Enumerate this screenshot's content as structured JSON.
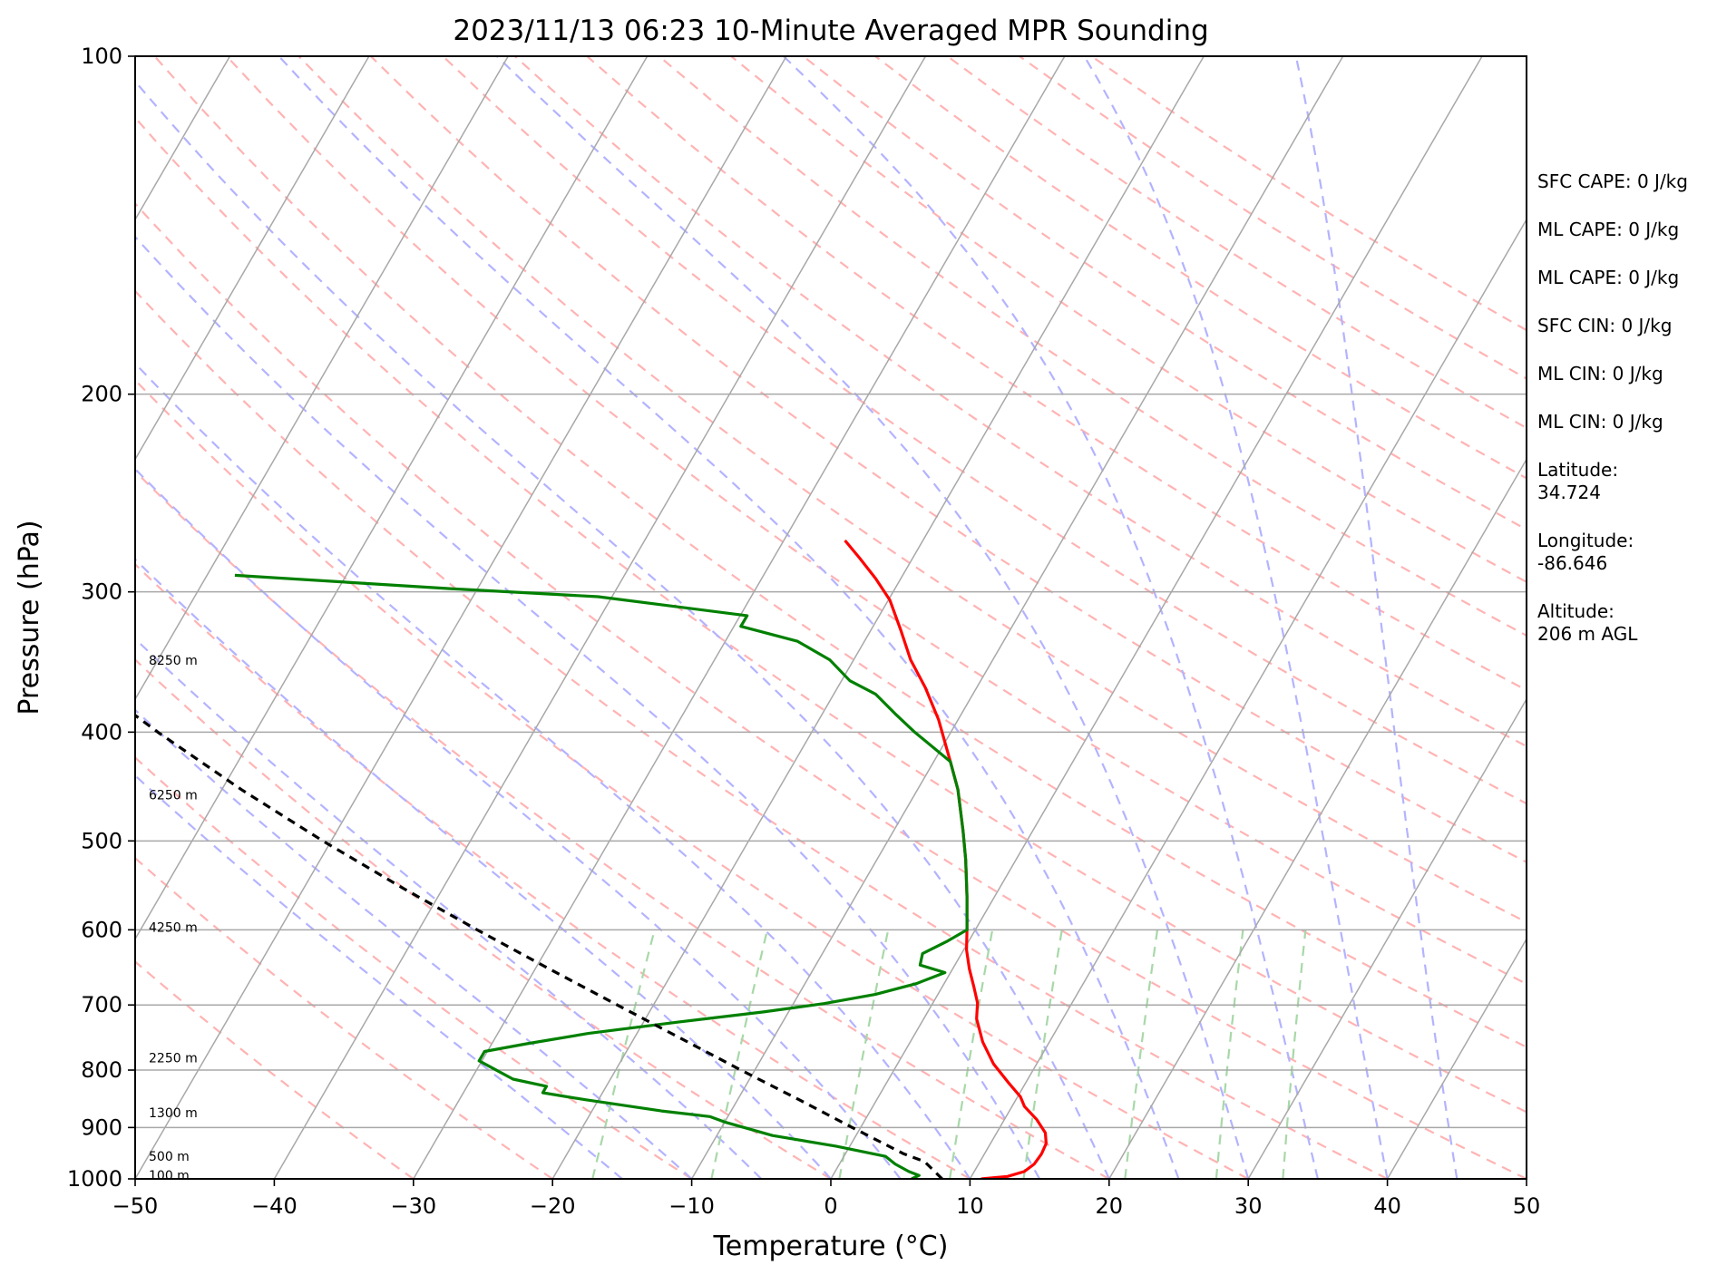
{
  "chart_data": {
    "type": "line",
    "title": "2023/11/13 06:23 10-Minute Averaged MPR Sounding",
    "xlabel": "Temperature (°C)",
    "ylabel": "Pressure (hPa)",
    "xlim": [
      -50,
      50
    ],
    "ylim": [
      1000,
      100
    ],
    "y_scale": "log",
    "skew": true,
    "grid": true,
    "x_ticks": [
      -50,
      -40,
      -30,
      -20,
      -10,
      0,
      10,
      20,
      30,
      40,
      50
    ],
    "x_tick_labels": [
      "−50",
      "−40",
      "−30",
      "−20",
      "−10",
      "0",
      "10",
      "20",
      "30",
      "40",
      "50"
    ],
    "y_ticks": [
      100,
      200,
      300,
      400,
      500,
      600,
      700,
      800,
      900,
      1000
    ],
    "y_tick_labels": [
      "100",
      "200",
      "300",
      "400",
      "500",
      "600",
      "700",
      "800",
      "900",
      "1000"
    ],
    "height_labels": [
      {
        "text": "8250 m",
        "p": 345
      },
      {
        "text": "6250 m",
        "p": 455
      },
      {
        "text": "4250 m",
        "p": 597
      },
      {
        "text": "2250 m",
        "p": 780
      },
      {
        "text": "1300 m",
        "p": 873
      },
      {
        "text": "500 m",
        "p": 955
      },
      {
        "text": "100 m",
        "p": 993
      }
    ],
    "series": [
      {
        "key": "temperature",
        "color": "#ff0000",
        "dash": "",
        "points": [
          {
            "p": 1000,
            "t": 10.8
          },
          {
            "p": 995,
            "t": 12.6
          },
          {
            "p": 985,
            "t": 13.6
          },
          {
            "p": 970,
            "t": 14.0
          },
          {
            "p": 950,
            "t": 14.1
          },
          {
            "p": 930,
            "t": 14.0
          },
          {
            "p": 910,
            "t": 13.5
          },
          {
            "p": 885,
            "t": 12.3
          },
          {
            "p": 862,
            "t": 10.9
          },
          {
            "p": 845,
            "t": 10.2
          },
          {
            "p": 820,
            "t": 8.7
          },
          {
            "p": 790,
            "t": 6.9
          },
          {
            "p": 755,
            "t": 5.2
          },
          {
            "p": 720,
            "t": 3.8
          },
          {
            "p": 697,
            "t": 3.2
          },
          {
            "p": 675,
            "t": 2.3
          },
          {
            "p": 650,
            "t": 1.2
          },
          {
            "p": 625,
            "t": 0.2
          },
          {
            "p": 600,
            "t": -0.6
          },
          {
            "p": 560,
            "t": -2.0
          },
          {
            "p": 520,
            "t": -3.6
          },
          {
            "p": 490,
            "t": -5.0
          },
          {
            "p": 450,
            "t": -7.1
          },
          {
            "p": 425,
            "t": -8.8
          },
          {
            "p": 390,
            "t": -11.4
          },
          {
            "p": 365,
            "t": -13.7
          },
          {
            "p": 345,
            "t": -15.9
          },
          {
            "p": 325,
            "t": -17.8
          },
          {
            "p": 305,
            "t": -19.9
          },
          {
            "p": 292,
            "t": -21.8
          },
          {
            "p": 280,
            "t": -23.8
          },
          {
            "p": 270,
            "t": -25.6
          }
        ]
      },
      {
        "key": "dewpoint",
        "color": "#008000",
        "dash": "",
        "points": [
          {
            "p": 1000,
            "t": 5.8
          },
          {
            "p": 993,
            "t": 6.2
          },
          {
            "p": 985,
            "t": 5.3
          },
          {
            "p": 970,
            "t": 4.0
          },
          {
            "p": 955,
            "t": 3.0
          },
          {
            "p": 935,
            "t": -1.0
          },
          {
            "p": 915,
            "t": -6.0
          },
          {
            "p": 890,
            "t": -10.0
          },
          {
            "p": 880,
            "t": -11.3
          },
          {
            "p": 870,
            "t": -15.0
          },
          {
            "p": 850,
            "t": -21.0
          },
          {
            "p": 838,
            "t": -24.3
          },
          {
            "p": 827,
            "t": -24.3
          },
          {
            "p": 815,
            "t": -27.0
          },
          {
            "p": 798,
            "t": -28.8
          },
          {
            "p": 785,
            "t": -30.2
          },
          {
            "p": 770,
            "t": -30.2
          },
          {
            "p": 758,
            "t": -27.5
          },
          {
            "p": 742,
            "t": -23.5
          },
          {
            "p": 725,
            "t": -17.5
          },
          {
            "p": 710,
            "t": -11.8
          },
          {
            "p": 698,
            "t": -7.8
          },
          {
            "p": 685,
            "t": -4.5
          },
          {
            "p": 670,
            "t": -2.0
          },
          {
            "p": 655,
            "t": -0.4
          },
          {
            "p": 645,
            "t": -2.5
          },
          {
            "p": 630,
            "t": -2.8
          },
          {
            "p": 615,
            "t": -1.6
          },
          {
            "p": 600,
            "t": -0.6
          },
          {
            "p": 560,
            "t": -2.0
          },
          {
            "p": 520,
            "t": -3.6
          },
          {
            "p": 490,
            "t": -5.0
          },
          {
            "p": 450,
            "t": -7.1
          },
          {
            "p": 425,
            "t": -8.8
          },
          {
            "p": 400,
            "t": -12.6
          },
          {
            "p": 385,
            "t": -14.8
          },
          {
            "p": 370,
            "t": -17.0
          },
          {
            "p": 360,
            "t": -19.4
          },
          {
            "p": 345,
            "t": -21.7
          },
          {
            "p": 332,
            "t": -24.8
          },
          {
            "p": 322,
            "t": -29.5
          },
          {
            "p": 315,
            "t": -29.5
          },
          {
            "p": 303,
            "t": -41.0
          },
          {
            "p": 298,
            "t": -52.0
          },
          {
            "p": 290,
            "t": -68.0
          }
        ]
      },
      {
        "key": "parcel",
        "color": "#000000",
        "dash": "9,7",
        "points": [
          {
            "p": 1000,
            "t": 8.0
          },
          {
            "p": 965,
            "t": 6.0
          },
          {
            "p": 950,
            "t": 4.2
          },
          {
            "p": 900,
            "t": -0.6
          },
          {
            "p": 850,
            "t": -5.6
          },
          {
            "p": 800,
            "t": -11.0
          },
          {
            "p": 750,
            "t": -16.6
          },
          {
            "p": 700,
            "t": -22.6
          },
          {
            "p": 650,
            "t": -29.0
          },
          {
            "p": 600,
            "t": -35.8
          },
          {
            "p": 550,
            "t": -43.0
          },
          {
            "p": 500,
            "t": -50.6
          },
          {
            "p": 450,
            "t": -58.6
          },
          {
            "p": 400,
            "t": -67.0
          },
          {
            "p": 350,
            "t": -76.0
          },
          {
            "p": 300,
            "t": -85.6
          },
          {
            "p": 270,
            "t": -91.6
          }
        ]
      }
    ]
  },
  "info_panel": {
    "sfc_cape": "SFC CAPE: 0 J/kg",
    "ml_cape_1": "ML CAPE: 0 J/kg",
    "ml_cape_2": "ML CAPE: 0 J/kg",
    "sfc_cin": "SFC CIN: 0 J/kg",
    "ml_cin_1": "ML CIN: 0 J/kg",
    "ml_cin_2": "ML CIN: 0 J/kg",
    "latitude_label": "Latitude:",
    "latitude_value": "34.724",
    "longitude_label": "Longitude:",
    "longitude_value": "-86.646",
    "altitude_label": "Altitude:",
    "altitude_value": "206 m AGL"
  },
  "colors": {
    "isobar_isotherm_grid": "#a8a8a8",
    "dry_adiabat": "#ffb3b3",
    "moist_adiabat": "#b3b3ff",
    "mixing_ratio": "#a8d8a8"
  }
}
